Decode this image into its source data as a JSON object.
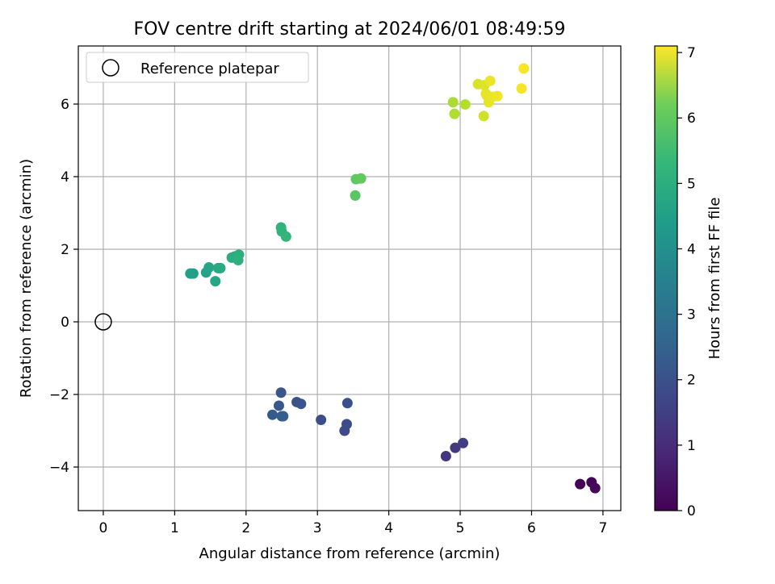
{
  "chart_data": {
    "type": "scatter",
    "title": "FOV centre drift starting at 2024/06/01 08:49:59",
    "xlabel": "Angular distance from reference (arcmin)",
    "ylabel": "Rotation from reference (arcmin)",
    "xlim": [
      -0.35,
      7.25
    ],
    "ylim": [
      -5.2,
      7.6
    ],
    "xticks": [
      0,
      1,
      2,
      3,
      4,
      5,
      6,
      7
    ],
    "yticks": [
      -4,
      -2,
      0,
      2,
      4,
      6
    ],
    "grid": true,
    "legend": {
      "position": "top-left",
      "entries": [
        "Reference platepar"
      ]
    },
    "reference_point": {
      "x": 0,
      "y": 0
    },
    "colorbar": {
      "label": "Hours from first FF file",
      "range": [
        0,
        7.1
      ],
      "ticks": [
        0,
        1,
        2,
        3,
        4,
        5,
        6,
        7
      ],
      "colormap": "viridis"
    },
    "points": [
      {
        "x": 6.68,
        "y": -4.47,
        "c": 0.05
      },
      {
        "x": 6.84,
        "y": -4.42,
        "c": 0.1
      },
      {
        "x": 6.89,
        "y": -4.58,
        "c": 0.15
      },
      {
        "x": 4.8,
        "y": -3.7,
        "c": 1.1
      },
      {
        "x": 4.93,
        "y": -3.47,
        "c": 1.2
      },
      {
        "x": 5.04,
        "y": -3.34,
        "c": 1.3
      },
      {
        "x": 3.38,
        "y": -3.0,
        "c": 1.6
      },
      {
        "x": 3.41,
        "y": -2.82,
        "c": 1.65
      },
      {
        "x": 3.05,
        "y": -2.7,
        "c": 1.7
      },
      {
        "x": 3.42,
        "y": -2.24,
        "c": 1.75
      },
      {
        "x": 2.71,
        "y": -2.21,
        "c": 1.8
      },
      {
        "x": 2.77,
        "y": -2.26,
        "c": 1.85
      },
      {
        "x": 2.49,
        "y": -1.95,
        "c": 1.9
      },
      {
        "x": 2.46,
        "y": -2.31,
        "c": 1.95
      },
      {
        "x": 2.37,
        "y": -2.56,
        "c": 2.0
      },
      {
        "x": 2.5,
        "y": -2.6,
        "c": 2.05
      },
      {
        "x": 2.52,
        "y": -2.6,
        "c": 2.1
      },
      {
        "x": 1.22,
        "y": 1.33,
        "c": 4.0
      },
      {
        "x": 1.26,
        "y": 1.33,
        "c": 4.05
      },
      {
        "x": 1.44,
        "y": 1.36,
        "c": 4.1
      },
      {
        "x": 1.48,
        "y": 1.5,
        "c": 4.15
      },
      {
        "x": 1.57,
        "y": 1.12,
        "c": 4.2
      },
      {
        "x": 1.61,
        "y": 1.48,
        "c": 4.25
      },
      {
        "x": 1.64,
        "y": 1.48,
        "c": 4.3
      },
      {
        "x": 1.8,
        "y": 1.77,
        "c": 4.35
      },
      {
        "x": 1.84,
        "y": 1.8,
        "c": 4.4
      },
      {
        "x": 1.9,
        "y": 1.85,
        "c": 4.45
      },
      {
        "x": 1.89,
        "y": 1.7,
        "c": 4.5
      },
      {
        "x": 2.49,
        "y": 2.6,
        "c": 4.55
      },
      {
        "x": 2.5,
        "y": 2.49,
        "c": 4.6
      },
      {
        "x": 2.56,
        "y": 2.35,
        "c": 4.65
      },
      {
        "x": 3.53,
        "y": 3.48,
        "c": 5.25
      },
      {
        "x": 3.54,
        "y": 3.93,
        "c": 5.3
      },
      {
        "x": 3.61,
        "y": 3.95,
        "c": 5.35
      },
      {
        "x": 4.9,
        "y": 6.05,
        "c": 6.2
      },
      {
        "x": 4.92,
        "y": 5.73,
        "c": 6.25
      },
      {
        "x": 5.07,
        "y": 5.99,
        "c": 6.3
      },
      {
        "x": 5.25,
        "y": 6.55,
        "c": 6.7
      },
      {
        "x": 5.33,
        "y": 5.67,
        "c": 6.6
      },
      {
        "x": 5.34,
        "y": 6.52,
        "c": 6.75
      },
      {
        "x": 5.36,
        "y": 6.28,
        "c": 6.8
      },
      {
        "x": 5.37,
        "y": 6.24,
        "c": 6.85
      },
      {
        "x": 5.4,
        "y": 6.05,
        "c": 6.85
      },
      {
        "x": 5.42,
        "y": 6.64,
        "c": 6.9
      },
      {
        "x": 5.45,
        "y": 6.2,
        "c": 6.9
      },
      {
        "x": 5.52,
        "y": 6.22,
        "c": 6.95
      },
      {
        "x": 5.86,
        "y": 6.43,
        "c": 7.0
      },
      {
        "x": 5.89,
        "y": 6.98,
        "c": 7.05
      }
    ]
  }
}
